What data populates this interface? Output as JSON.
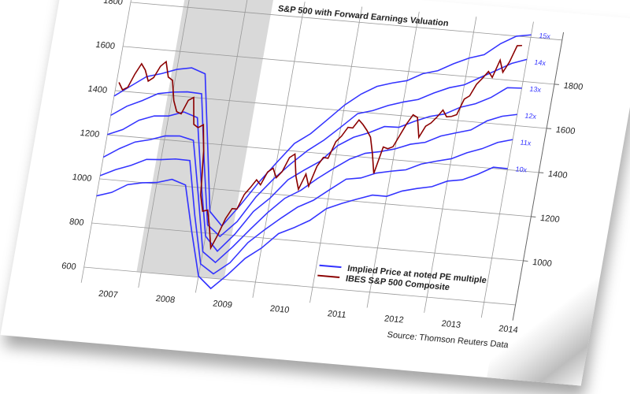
{
  "chart_data": {
    "type": "line",
    "title": "S&P 500 with Forward Earnings Valuation",
    "source": "Source: Thomson Reuters Data",
    "xlim": [
      2007,
      2014
    ],
    "ylim": [
      600,
      1800
    ],
    "x_tick_labels": [
      "2007",
      "2008",
      "2009",
      "2010",
      "2011",
      "2012",
      "2013",
      "2014"
    ],
    "y_ticks": [
      600,
      800,
      1000,
      1200,
      1400,
      1600,
      1800
    ],
    "y2_ticks": [
      1000,
      1200,
      1400,
      1600,
      1800
    ],
    "grid": true,
    "recession_shading": [
      2007.92,
      2009.45
    ],
    "legend": {
      "position": "bottom-right",
      "entries": [
        {
          "label": "Implied Price at noted PE multiple",
          "color": "#3333ff"
        },
        {
          "label": "IBES S&P 500 Composite",
          "color": "#8b0000"
        }
      ]
    },
    "implied_x": [
      2007.0,
      2007.25,
      2007.5,
      2007.75,
      2008.0,
      2008.25,
      2008.5,
      2008.75,
      2009.0,
      2009.25,
      2009.5,
      2009.75,
      2010.0,
      2010.25,
      2010.5,
      2010.75,
      2011.0,
      2011.25,
      2011.5,
      2011.75,
      2012.0,
      2012.25,
      2012.5,
      2012.75,
      2013.0,
      2013.25,
      2013.5,
      2013.75,
      2014.0
    ],
    "implied_series": [
      {
        "name": "10x",
        "values": [
          920,
          950,
          980,
          1000,
          1010,
          1020,
          1010,
          800,
          600,
          560,
          620,
          700,
          760,
          820,
          860,
          900,
          950,
          990,
          1010,
          1030,
          1040,
          1060,
          1080,
          1100,
          1120,
          1140,
          1170,
          1200,
          1210
        ]
      },
      {
        "name": "11x",
        "values": [
          1012,
          1045,
          1078,
          1100,
          1111,
          1122,
          1111,
          880,
          660,
          616,
          682,
          770,
          836,
          902,
          946,
          990,
          1045,
          1089,
          1111,
          1133,
          1144,
          1166,
          1188,
          1210,
          1232,
          1254,
          1287,
          1320,
          1331
        ]
      },
      {
        "name": "12x",
        "values": [
          1104,
          1140,
          1176,
          1200,
          1212,
          1224,
          1212,
          960,
          720,
          672,
          744,
          840,
          912,
          984,
          1032,
          1080,
          1140,
          1188,
          1212,
          1236,
          1248,
          1272,
          1296,
          1320,
          1344,
          1368,
          1404,
          1440,
          1452
        ]
      },
      {
        "name": "13x",
        "values": [
          1196,
          1235,
          1274,
          1300,
          1313,
          1326,
          1313,
          1040,
          780,
          728,
          806,
          910,
          988,
          1066,
          1118,
          1170,
          1235,
          1287,
          1313,
          1339,
          1352,
          1378,
          1404,
          1430,
          1456,
          1482,
          1521,
          1560,
          1573
        ]
      },
      {
        "name": "14x",
        "values": [
          1288,
          1330,
          1372,
          1400,
          1414,
          1428,
          1414,
          1120,
          840,
          784,
          868,
          980,
          1064,
          1148,
          1204,
          1260,
          1330,
          1386,
          1414,
          1442,
          1456,
          1484,
          1512,
          1540,
          1568,
          1596,
          1638,
          1680,
          1694
        ]
      },
      {
        "name": "15x",
        "values": [
          1380,
          1425,
          1470,
          1500,
          1515,
          1530,
          1515,
          1200,
          900,
          840,
          930,
          1050,
          1140,
          1230,
          1290,
          1350,
          1425,
          1485,
          1515,
          1545,
          1560,
          1590,
          1620,
          1650,
          1680,
          1710,
          1755,
          1800,
          1815
        ]
      }
    ],
    "sp500": {
      "start_year": 2007,
      "frequency": "monthly",
      "values": [
        1438,
        1406,
        1420,
        1482,
        1530,
        1503,
        1455,
        1473,
        1526,
        1549,
        1481,
        1468,
        1378,
        1330,
        1322,
        1385,
        1400,
        1280,
        1267,
        1282,
        1166,
        968,
        896,
        903,
        825,
        735,
        797,
        872,
        919,
        919,
        987,
        1020,
        1057,
        1036,
        1096,
        1115,
        1074,
        1104,
        1169,
        1187,
        1089,
        1031,
        1102,
        1049,
        1141,
        1183,
        1181,
        1258,
        1286,
        1327,
        1326,
        1364,
        1345,
        1321,
        1292,
        1219,
        1131,
        1253,
        1247,
        1258,
        1312,
        1366,
        1408,
        1398,
        1310,
        1362,
        1379,
        1407,
        1441,
        1412,
        1416,
        1426,
        1498,
        1515,
        1569,
        1598,
        1631,
        1606,
        1686,
        1633,
        1682,
        1757,
        1760
      ]
    },
    "colors": {
      "implied": "#3333ff",
      "sp500": "#8b0000",
      "recession": "#d9d9d9"
    }
  }
}
